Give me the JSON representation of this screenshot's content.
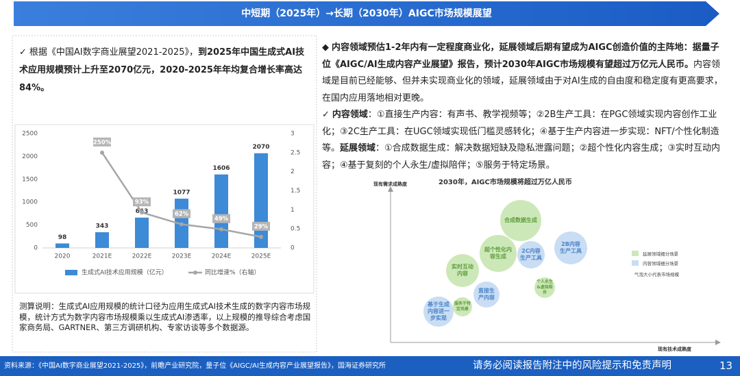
{
  "header": {
    "title": "中短期（2025年）→长期（2030年）AIGC市场规模展望"
  },
  "left": {
    "marker": "✓",
    "parts": [
      {
        "text": "根据《中国AI数字商业展望2021-2025》，",
        "bold": false
      },
      {
        "text": "到2025年中国生成式AI技术应用规模预计上升至2070亿元，2020-2025年年均复合增长率高达84%。",
        "bold": true
      }
    ],
    "note": "测算说明：生成式AI应用规模的统计口径为应用生成式AI技术生成的数字内容市场规模，统计方式为数字内容市场规模乘以生成式AI渗透率，以上规模的推导综合考虑国家商务局、GARTNER、第三方调研机构、专家访谈等多个数据源。"
  },
  "chart_data": {
    "type": "bar-line",
    "categories": [
      "2020",
      "2021E",
      "2022E",
      "2023E",
      "2024E",
      "2025E"
    ],
    "series": [
      {
        "name": "生成式AI技术应用规模（亿元）",
        "color": "#3d8ad6",
        "type": "bar",
        "values": [
          98,
          343,
          663,
          1077,
          1606,
          2070
        ]
      },
      {
        "name": "同比增速%（右轴）",
        "color": "#a6a6a6",
        "type": "line",
        "axis": "y2",
        "values": [
          null,
          2.5,
          0.93,
          0.62,
          0.49,
          0.29
        ],
        "value_labels": [
          null,
          "250%",
          "93%",
          "62%",
          "49%",
          "29%"
        ]
      }
    ],
    "ylim": [
      0,
      2500
    ],
    "yticks": [
      0,
      500,
      1000,
      1500,
      2000,
      2500
    ],
    "y2lim": [
      0,
      3
    ],
    "y2ticks": [
      0,
      0.5,
      1,
      1.5,
      2,
      2.5,
      3
    ],
    "grid": false
  },
  "right": {
    "paragraphs": [
      {
        "marker": "◆",
        "parts": [
          {
            "text": "内容领域预估1-2年内有一定程度商业化，延展领域后期有望成为AIGC创造价值的主阵地：据量子位《AIGC/AI生成内容产业展望》报告，预计2030年AIGC市场规模有望超过万亿元人民币。",
            "bold": true
          },
          {
            "text": "内容领域是目前已经能够、但并未实现商业化的领域，延展领域由于对AI生成的自由度和稳定度有更高要求，在国内应用落地相对更晚。",
            "bold": false
          }
        ]
      },
      {
        "marker": "✓",
        "parts": [
          {
            "text": "内容领域",
            "bold": true
          },
          {
            "text": "：①直接生产内容：有声书、教学视频等；②2B生产工具：在PGC领域实现内容创作工业化；③2C生产工具：在UGC领域实现低门槛灵感转化；④基于生产内容进一步实现：NFT/个性化制造等。",
            "bold": false
          },
          {
            "text": "延展领域",
            "bold": true
          },
          {
            "text": "：①合成数据生成：解决数据短缺及隐私泄露问题；②超个性化内容生成；③实时互动内容；④基于复刻的个人永生/虚拟陪伴；⑤服务于特定场景。",
            "bold": false
          }
        ]
      }
    ]
  },
  "bubble_diagram": {
    "title": "2030年，AIGC市场规模将超过万亿人民币",
    "y_axis_label": "现有需求成熟度",
    "x_axis_label": "现有技术成熟度",
    "legend": [
      {
        "name": "延展领域细分场景",
        "color": "#cde8b8",
        "text_color": "#5f9e3c"
      },
      {
        "name": "内容领域细分场景",
        "color": "#c9ddf4",
        "text_color": "#4b84c6"
      }
    ],
    "legend_note": "气泡大小代表市场规模",
    "nodes": [
      {
        "label": "合成数据生成",
        "group": 0
      },
      {
        "label": "超个性化内容生成",
        "group": 0
      },
      {
        "label": "2C内容生产工具",
        "group": 1
      },
      {
        "label": "2B内容生产工具",
        "group": 1
      },
      {
        "label": "实时互动内容",
        "group": 0
      },
      {
        "label": "直接生产内容",
        "group": 1
      },
      {
        "label": "个人永生&虚拟陪伴",
        "group": 0
      },
      {
        "label": "服务于特定场景",
        "group": 0
      },
      {
        "label": "基于生成内容进一步实现",
        "group": 1
      }
    ]
  },
  "footer": {
    "source": "资料来源：《中国AI数字商业展望2021-2025》，前瞻产业研究院，量子位《AIGC/AI生成内容产业展望报告》，国海证券研究所",
    "disclaimer": "请务必阅读报告附注中的风险提示和免责声明",
    "page": "13"
  }
}
